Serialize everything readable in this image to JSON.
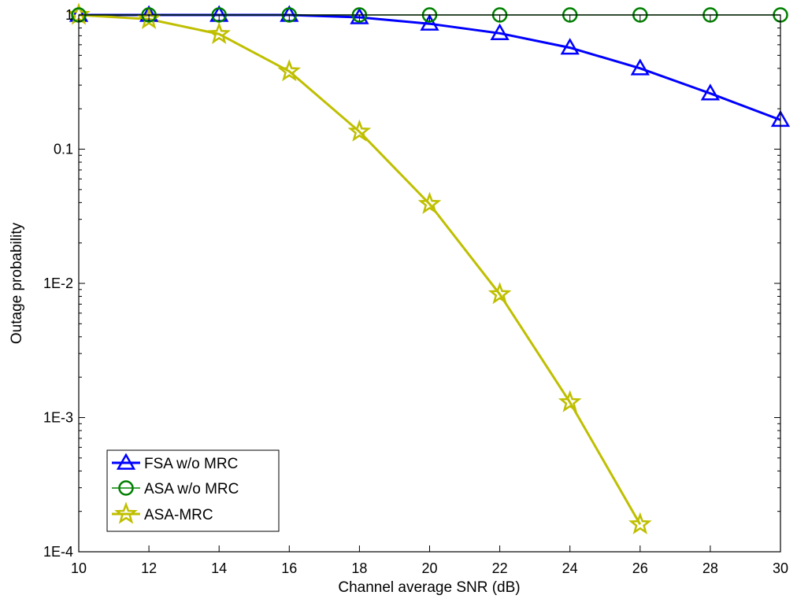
{
  "chart_data": {
    "type": "line",
    "title": "",
    "xlabel": "Channel average SNR (dB)",
    "ylabel": "Outage probability",
    "xlim": [
      10,
      30
    ],
    "ylim": [
      0.0001,
      1
    ],
    "y_scale": "log",
    "grid": false,
    "legend_position": "bottom-left",
    "x_ticks": [
      10,
      12,
      14,
      16,
      18,
      20,
      22,
      24,
      26,
      28,
      30
    ],
    "x_tick_labels": [
      "10",
      "12",
      "14",
      "16",
      "18",
      "20",
      "22",
      "24",
      "26",
      "28",
      "30"
    ],
    "y_ticks": [
      0.0001,
      0.001,
      0.01,
      0.1,
      1
    ],
    "y_tick_labels": [
      "1E-4",
      "1E-3",
      "1E-2",
      "0.1",
      "1"
    ],
    "series": [
      {
        "name": "FSA w/o MRC",
        "color": "#0000FF",
        "marker": "triangle",
        "x": [
          10,
          12,
          14,
          16,
          18,
          20,
          22,
          24,
          26,
          28,
          30
        ],
        "y": [
          1.0,
          1.0,
          1.0,
          1.0,
          0.96,
          0.86,
          0.73,
          0.57,
          0.4,
          0.26,
          0.165
        ]
      },
      {
        "name": "ASA w/o MRC",
        "color": "#008000",
        "marker": "circle",
        "x": [
          10,
          12,
          14,
          16,
          18,
          20,
          22,
          24,
          26,
          28,
          30
        ],
        "y": [
          1.0,
          1.0,
          1.0,
          1.0,
          1.0,
          1.0,
          1.0,
          1.0,
          1.0,
          1.0,
          1.0
        ]
      },
      {
        "name": "ASA-MRC",
        "color": "#BFBF00",
        "marker": "star",
        "x": [
          10,
          12,
          14,
          16,
          18,
          20,
          22,
          24,
          26
        ],
        "y": [
          1.0,
          0.93,
          0.72,
          0.38,
          0.135,
          0.039,
          0.0083,
          0.0013,
          0.00016
        ]
      }
    ]
  }
}
